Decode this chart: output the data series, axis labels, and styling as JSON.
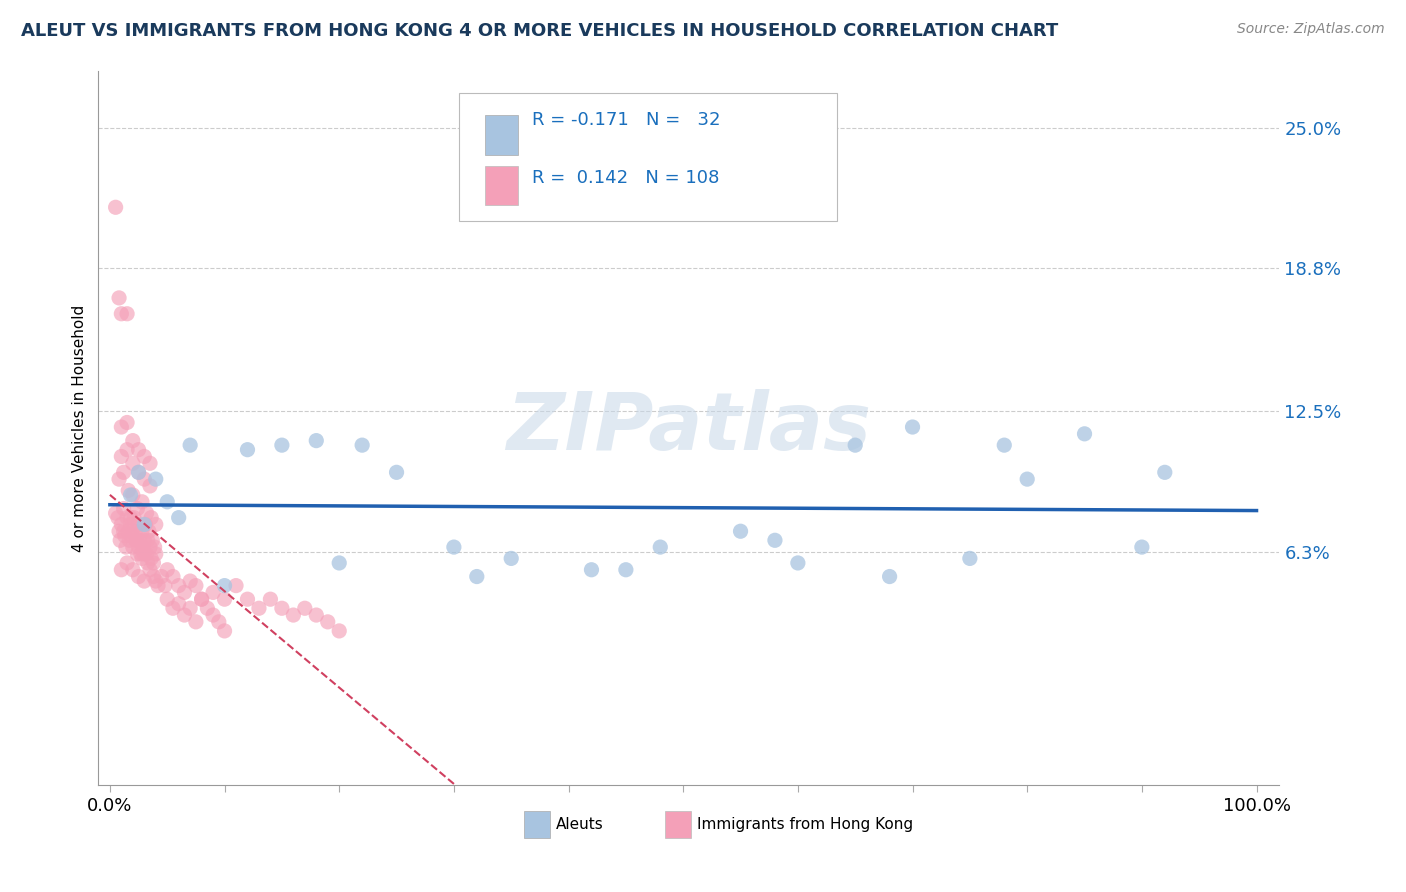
{
  "title": "ALEUT VS IMMIGRANTS FROM HONG KONG 4 OR MORE VEHICLES IN HOUSEHOLD CORRELATION CHART",
  "source_text": "Source: ZipAtlas.com",
  "ylabel": "4 or more Vehicles in Household",
  "ytick_labels": [
    "25.0%",
    "18.8%",
    "12.5%",
    "6.3%"
  ],
  "ytick_values": [
    0.25,
    0.188,
    0.125,
    0.063
  ],
  "ylim": [
    -0.04,
    0.275
  ],
  "xlim": [
    -0.01,
    1.02
  ],
  "xtick_positions": [
    0.0,
    0.1,
    0.2,
    0.3,
    0.4,
    0.5,
    0.6,
    0.7,
    0.8,
    0.9,
    1.0
  ],
  "r_aleut": -0.171,
  "n_aleut": 32,
  "r_hk": 0.142,
  "n_hk": 108,
  "color_aleut": "#a8c4e0",
  "color_hk": "#f4a0b8",
  "trendline_aleut_color": "#2060b0",
  "trendline_hk_color": "#d04060",
  "legend_label_aleut": "Aleuts",
  "legend_label_hk": "Immigrants from Hong Kong",
  "watermark_text": "ZIPatlas",
  "aleut_x": [
    0.018,
    0.025,
    0.03,
    0.04,
    0.05,
    0.06,
    0.07,
    0.12,
    0.15,
    0.18,
    0.22,
    0.25,
    0.3,
    0.35,
    0.42,
    0.48,
    0.55,
    0.6,
    0.65,
    0.7,
    0.75,
    0.8,
    0.85,
    0.9,
    0.92,
    0.78,
    0.68,
    0.58,
    0.45,
    0.32,
    0.2,
    0.1
  ],
  "aleut_y": [
    0.088,
    0.098,
    0.075,
    0.095,
    0.085,
    0.078,
    0.11,
    0.108,
    0.11,
    0.112,
    0.11,
    0.098,
    0.065,
    0.06,
    0.055,
    0.065,
    0.072,
    0.058,
    0.11,
    0.118,
    0.06,
    0.095,
    0.115,
    0.065,
    0.098,
    0.11,
    0.052,
    0.068,
    0.055,
    0.052,
    0.058,
    0.048
  ],
  "hk_x_cluster": [
    0.005,
    0.007,
    0.008,
    0.009,
    0.01,
    0.012,
    0.013,
    0.014,
    0.015,
    0.016,
    0.017,
    0.018,
    0.019,
    0.02,
    0.021,
    0.022,
    0.023,
    0.024,
    0.025,
    0.026,
    0.027,
    0.028,
    0.029,
    0.03,
    0.031,
    0.032,
    0.033,
    0.034,
    0.035,
    0.036,
    0.037,
    0.038,
    0.039,
    0.04,
    0.008,
    0.012,
    0.016,
    0.02,
    0.024,
    0.028,
    0.032,
    0.036,
    0.04,
    0.01,
    0.015,
    0.02,
    0.025,
    0.03,
    0.035,
    0.01,
    0.015,
    0.02,
    0.025,
    0.03,
    0.035,
    0.01,
    0.015,
    0.02,
    0.025,
    0.03,
    0.005,
    0.008,
    0.01,
    0.012,
    0.015,
    0.018,
    0.02,
    0.023,
    0.025,
    0.028,
    0.03,
    0.033,
    0.035,
    0.038,
    0.04,
    0.042,
    0.045,
    0.048,
    0.05,
    0.055,
    0.06,
    0.065,
    0.07,
    0.075,
    0.08,
    0.09,
    0.1,
    0.11,
    0.12,
    0.13,
    0.14,
    0.15,
    0.16,
    0.17,
    0.18,
    0.19,
    0.2,
    0.05,
    0.055,
    0.06,
    0.065,
    0.07,
    0.075,
    0.08,
    0.085,
    0.09,
    0.095,
    0.1
  ],
  "hk_y_cluster": [
    0.08,
    0.078,
    0.072,
    0.068,
    0.075,
    0.082,
    0.07,
    0.065,
    0.078,
    0.072,
    0.068,
    0.075,
    0.07,
    0.065,
    0.078,
    0.072,
    0.068,
    0.062,
    0.075,
    0.068,
    0.062,
    0.072,
    0.065,
    0.068,
    0.075,
    0.062,
    0.068,
    0.072,
    0.065,
    0.06,
    0.068,
    0.058,
    0.065,
    0.062,
    0.095,
    0.098,
    0.09,
    0.088,
    0.082,
    0.085,
    0.08,
    0.078,
    0.075,
    0.105,
    0.108,
    0.102,
    0.098,
    0.095,
    0.092,
    0.118,
    0.12,
    0.112,
    0.108,
    0.105,
    0.102,
    0.055,
    0.058,
    0.055,
    0.052,
    0.05,
    0.215,
    0.175,
    0.168,
    0.072,
    0.168,
    0.078,
    0.072,
    0.068,
    0.065,
    0.06,
    0.062,
    0.058,
    0.055,
    0.052,
    0.05,
    0.048,
    0.052,
    0.048,
    0.055,
    0.052,
    0.048,
    0.045,
    0.05,
    0.048,
    0.042,
    0.045,
    0.042,
    0.048,
    0.042,
    0.038,
    0.042,
    0.038,
    0.035,
    0.038,
    0.035,
    0.032,
    0.028,
    0.042,
    0.038,
    0.04,
    0.035,
    0.038,
    0.032,
    0.042,
    0.038,
    0.035,
    0.032,
    0.028
  ]
}
